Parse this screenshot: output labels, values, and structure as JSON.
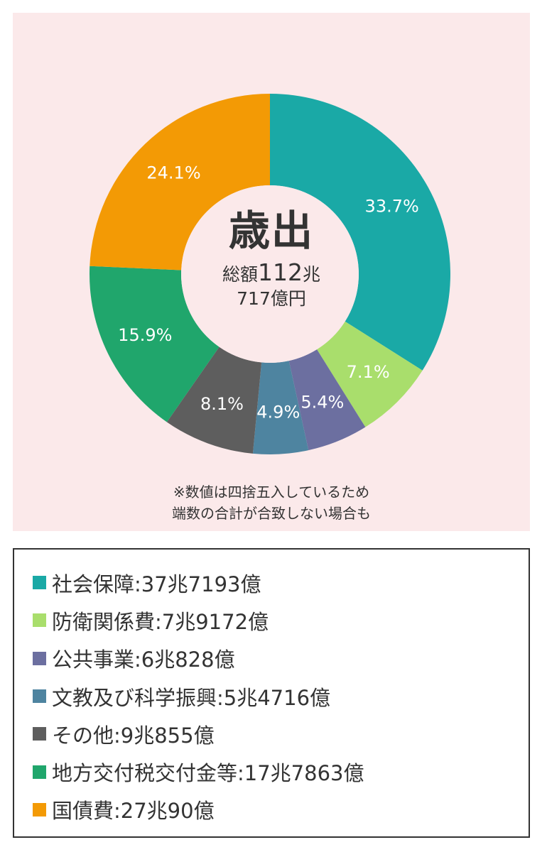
{
  "chart_data": {
    "type": "pie",
    "donut": true,
    "title": "歳出",
    "center_text": {
      "line1_prefix": "総額",
      "line1_number": "112",
      "line1_suffix": "兆",
      "line2": "717億円"
    },
    "slices": [
      {
        "name": "社会保障",
        "value": 33.7,
        "label": "33.7%",
        "amount": "37兆7193億",
        "color": "#1aa9a6"
      },
      {
        "name": "防衛関係費",
        "value": 7.1,
        "label": "7.1%",
        "amount": "7兆9172億",
        "color": "#a9de6c"
      },
      {
        "name": "公共事業",
        "value": 5.4,
        "label": "5.4%",
        "amount": "6兆828億",
        "color": "#6c6fa0"
      },
      {
        "name": "文教及び科学振興",
        "value": 4.9,
        "label": "4.9%",
        "amount": "5兆4716億",
        "color": "#4e84a0"
      },
      {
        "name": "その他",
        "value": 8.1,
        "label": "8.1%",
        "amount": "9兆855億",
        "color": "#5e5e5e"
      },
      {
        "name": "地方交付税交付金等",
        "value": 15.9,
        "label": "15.9%",
        "amount": "17兆7863億",
        "color": "#20a66c"
      },
      {
        "name": "国債費",
        "value": 24.1,
        "label": "24.1%",
        "amount": "27兆90億",
        "color": "#f39a05"
      }
    ],
    "legend": [
      "社会保障:37兆7193億",
      "防衛関係費:7兆9172億",
      "公共事業:6兆828億",
      "文教及び科学振興:5兆4716億",
      "その他:9兆855億",
      "地方交付税交付金等:17兆7863億",
      "国債費:27兆90億"
    ]
  },
  "note": {
    "line1": "※数値は四捨五入しているため",
    "line2": "端数の合計が合致しない場合も"
  },
  "colors": {
    "panel_background": "#fbe9ea",
    "slice_label_text": "#ffffff"
  }
}
